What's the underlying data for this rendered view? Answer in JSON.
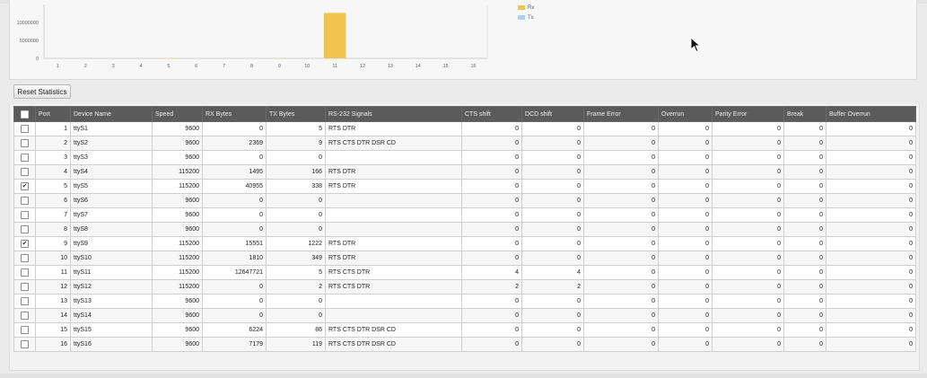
{
  "colors": {
    "rx": "#f0c64e",
    "tx": "#a9d2f1",
    "header_bg": "#5b5b5b"
  },
  "chart_data": {
    "type": "bar",
    "categories": [
      "1",
      "2",
      "3",
      "4",
      "5",
      "6",
      "7",
      "8",
      "9",
      "10",
      "11",
      "12",
      "13",
      "14",
      "15",
      "16"
    ],
    "series": [
      {
        "name": "Rx",
        "values": [
          0,
          2369,
          0,
          1495,
          40955,
          0,
          0,
          0,
          15551,
          1810,
          12647721,
          0,
          0,
          0,
          6224,
          7179
        ]
      },
      {
        "name": "Tx",
        "values": [
          5,
          9,
          0,
          166,
          338,
          0,
          0,
          0,
          1222,
          349,
          5,
          2,
          0,
          0,
          86,
          119
        ]
      }
    ],
    "y_ticks": [
      "10000000",
      "5000000",
      "0"
    ],
    "ylim": [
      0,
      15000000
    ],
    "legend": "top-right"
  },
  "actions": {
    "reset_label": "Reset Statistics"
  },
  "table": {
    "headers": [
      "",
      "Port",
      "Device Name",
      "Speed",
      "RX Bytes",
      "TX Bytes",
      "RS-232 Signals",
      "CTS shift",
      "DCD shift",
      "Frame Error",
      "Overrun",
      "Parity Error",
      "Break",
      "Buffer Overrun"
    ],
    "rows": [
      {
        "checked": false,
        "port": "1",
        "device": "ttyS1",
        "speed": "9600",
        "rx": "0",
        "tx": "5",
        "signals": "RTS DTR",
        "cts": "0",
        "dcd": "0",
        "frame": "0",
        "overrun": "0",
        "parity": "0",
        "break": "0",
        "buffer": "0"
      },
      {
        "checked": false,
        "port": "2",
        "device": "ttyS2",
        "speed": "9600",
        "rx": "2369",
        "tx": "9",
        "signals": "RTS CTS DTR DSR CD",
        "cts": "0",
        "dcd": "0",
        "frame": "0",
        "overrun": "0",
        "parity": "0",
        "break": "0",
        "buffer": "0"
      },
      {
        "checked": false,
        "port": "3",
        "device": "ttyS3",
        "speed": "9600",
        "rx": "0",
        "tx": "0",
        "signals": "",
        "cts": "0",
        "dcd": "0",
        "frame": "0",
        "overrun": "0",
        "parity": "0",
        "break": "0",
        "buffer": "0"
      },
      {
        "checked": false,
        "port": "4",
        "device": "ttyS4",
        "speed": "115200",
        "rx": "1495",
        "tx": "166",
        "signals": "RTS DTR",
        "cts": "0",
        "dcd": "0",
        "frame": "0",
        "overrun": "0",
        "parity": "0",
        "break": "0",
        "buffer": "0"
      },
      {
        "checked": true,
        "port": "5",
        "device": "ttyS5",
        "speed": "115200",
        "rx": "40955",
        "tx": "338",
        "signals": "RTS DTR",
        "cts": "0",
        "dcd": "0",
        "frame": "0",
        "overrun": "0",
        "parity": "0",
        "break": "0",
        "buffer": "0"
      },
      {
        "checked": false,
        "port": "6",
        "device": "ttyS6",
        "speed": "9600",
        "rx": "0",
        "tx": "0",
        "signals": "",
        "cts": "0",
        "dcd": "0",
        "frame": "0",
        "overrun": "0",
        "parity": "0",
        "break": "0",
        "buffer": "0"
      },
      {
        "checked": false,
        "port": "7",
        "device": "ttyS7",
        "speed": "9600",
        "rx": "0",
        "tx": "0",
        "signals": "",
        "cts": "0",
        "dcd": "0",
        "frame": "0",
        "overrun": "0",
        "parity": "0",
        "break": "0",
        "buffer": "0"
      },
      {
        "checked": false,
        "port": "8",
        "device": "ttyS8",
        "speed": "9600",
        "rx": "0",
        "tx": "0",
        "signals": "",
        "cts": "0",
        "dcd": "0",
        "frame": "0",
        "overrun": "0",
        "parity": "0",
        "break": "0",
        "buffer": "0"
      },
      {
        "checked": true,
        "port": "9",
        "device": "ttyS9",
        "speed": "115200",
        "rx": "15551",
        "tx": "1222",
        "signals": "RTS DTR",
        "cts": "0",
        "dcd": "0",
        "frame": "0",
        "overrun": "0",
        "parity": "0",
        "break": "0",
        "buffer": "0"
      },
      {
        "checked": false,
        "port": "10",
        "device": "ttyS10",
        "speed": "115200",
        "rx": "1810",
        "tx": "349",
        "signals": "RTS DTR",
        "cts": "0",
        "dcd": "0",
        "frame": "0",
        "overrun": "0",
        "parity": "0",
        "break": "0",
        "buffer": "0"
      },
      {
        "checked": false,
        "port": "11",
        "device": "ttyS11",
        "speed": "115200",
        "rx": "12647721",
        "tx": "5",
        "signals": "RTS CTS DTR",
        "cts": "4",
        "dcd": "4",
        "frame": "0",
        "overrun": "0",
        "parity": "0",
        "break": "0",
        "buffer": "0"
      },
      {
        "checked": false,
        "port": "12",
        "device": "ttyS12",
        "speed": "115200",
        "rx": "0",
        "tx": "2",
        "signals": "RTS CTS DTR",
        "cts": "2",
        "dcd": "2",
        "frame": "0",
        "overrun": "0",
        "parity": "0",
        "break": "0",
        "buffer": "0"
      },
      {
        "checked": false,
        "port": "13",
        "device": "ttyS13",
        "speed": "9600",
        "rx": "0",
        "tx": "0",
        "signals": "",
        "cts": "0",
        "dcd": "0",
        "frame": "0",
        "overrun": "0",
        "parity": "0",
        "break": "0",
        "buffer": "0"
      },
      {
        "checked": false,
        "port": "14",
        "device": "ttyS14",
        "speed": "9600",
        "rx": "0",
        "tx": "0",
        "signals": "",
        "cts": "0",
        "dcd": "0",
        "frame": "0",
        "overrun": "0",
        "parity": "0",
        "break": "0",
        "buffer": "0"
      },
      {
        "checked": false,
        "port": "15",
        "device": "ttyS15",
        "speed": "9600",
        "rx": "6224",
        "tx": "86",
        "signals": "RTS CTS DTR DSR CD",
        "cts": "0",
        "dcd": "0",
        "frame": "0",
        "overrun": "0",
        "parity": "0",
        "break": "0",
        "buffer": "0"
      },
      {
        "checked": false,
        "port": "16",
        "device": "ttyS16",
        "speed": "9600",
        "rx": "7179",
        "tx": "119",
        "signals": "RTS CTS DTR DSR CD",
        "cts": "0",
        "dcd": "0",
        "frame": "0",
        "overrun": "0",
        "parity": "0",
        "break": "0",
        "buffer": "0"
      }
    ]
  }
}
